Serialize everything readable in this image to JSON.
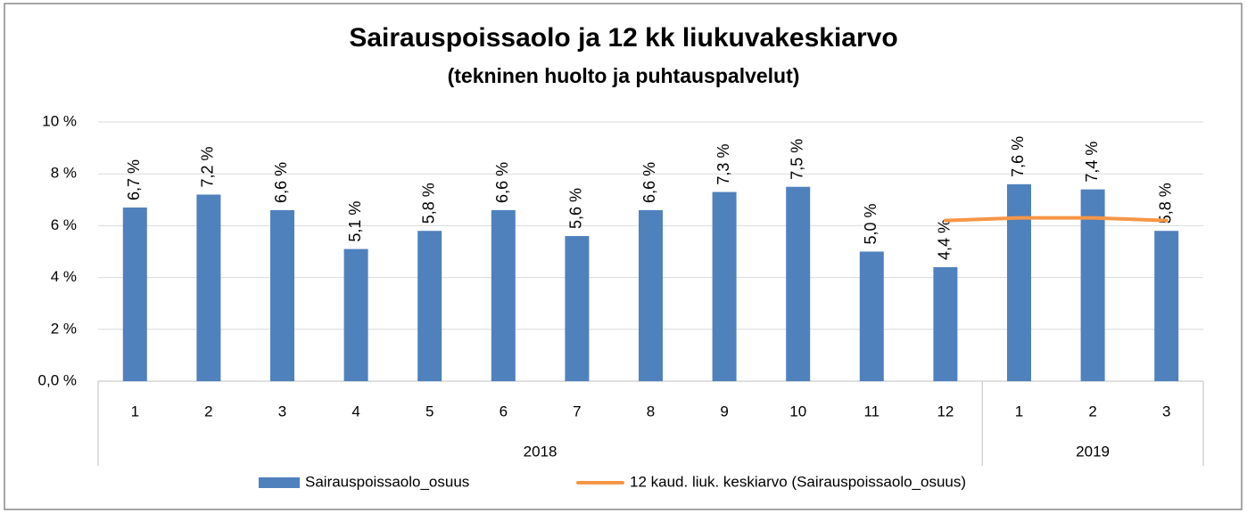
{
  "chart_data": {
    "type": "bar",
    "title": "Sairauspoissaolo ja 12 kk liukuvakeskiarvo",
    "subtitle": "(tekninen huolto ja puhtauspalvelut)",
    "categories": [
      "1",
      "2",
      "3",
      "4",
      "5",
      "6",
      "7",
      "8",
      "9",
      "10",
      "11",
      "12",
      "1",
      "2",
      "3"
    ],
    "groups": [
      {
        "label": "2018",
        "span": 12
      },
      {
        "label": "2019",
        "span": 3
      }
    ],
    "series": [
      {
        "name": "Sairauspoissaolo_osuus",
        "type": "bar",
        "color": "#4f81bd",
        "values": [
          6.7,
          7.2,
          6.6,
          5.1,
          5.8,
          6.6,
          5.6,
          6.6,
          7.3,
          7.5,
          5.0,
          4.4,
          7.6,
          7.4,
          5.8
        ],
        "value_labels": [
          "6,7 %",
          "7,2 %",
          "6,6 %",
          "5,1 %",
          "5,8 %",
          "6,6 %",
          "5,6 %",
          "6,6 %",
          "7,3 %",
          "7,5 %",
          "5,0 %",
          "4,4 %",
          "7,6 %",
          "7,4 %",
          "5,8 %"
        ]
      },
      {
        "name": "12 kaud. liuk. keskiarvo (Sairauspoissaolo_osuus)",
        "type": "line",
        "color": "#f79646",
        "values": [
          null,
          null,
          null,
          null,
          null,
          null,
          null,
          null,
          null,
          null,
          null,
          6.2,
          6.3,
          6.3,
          6.2
        ]
      }
    ],
    "ylim": [
      0,
      10
    ],
    "yticks": [
      {
        "value": 0,
        "label": "0,0 %"
      },
      {
        "value": 2,
        "label": "2 %"
      },
      {
        "value": 4,
        "label": "4 %"
      },
      {
        "value": 6,
        "label": "6 %"
      },
      {
        "value": 8,
        "label": "8 %"
      },
      {
        "value": 10,
        "label": "10 %"
      }
    ],
    "grid": true,
    "legend": "bottom"
  }
}
